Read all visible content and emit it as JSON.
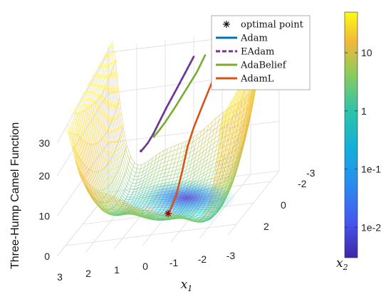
{
  "chart_data": {
    "type": "surface3d",
    "title": "",
    "zlabel": "Three-Hump Camel Function",
    "x1label": "x",
    "x1label_sub": "1",
    "x2label": "x",
    "x2label_sub": "2",
    "x1_ticks": [
      "3",
      "2",
      "1",
      "0",
      "-1",
      "-2",
      "-3"
    ],
    "x2_ticks": [
      "-2",
      "0",
      "2",
      "-3"
    ],
    "z_ticks": [
      "30",
      "20",
      "10",
      "0"
    ],
    "x1_range": [
      -3,
      3
    ],
    "x2_range": [
      -3,
      3
    ],
    "z_range": [
      0,
      30
    ],
    "grid": true,
    "colorbar": {
      "scale": "log",
      "ticks": [
        "10",
        "1",
        "1e-1",
        "1e-2"
      ],
      "tick_values": [
        10,
        1,
        0.1,
        0.01
      ],
      "range": [
        0.003,
        50
      ]
    },
    "legend": {
      "placement": "top-right",
      "entries": [
        {
          "label": "optimal point",
          "marker": "asterisk",
          "color": "#000000"
        },
        {
          "label": "Adam",
          "style": "solid",
          "color": "#0072BD"
        },
        {
          "label": "EAdam",
          "style": "dashed",
          "color": "#7E2F8E"
        },
        {
          "label": "AdaBelief",
          "style": "solid",
          "color": "#77AC30"
        },
        {
          "label": "AdamL",
          "style": "solid",
          "color": "#D95319"
        }
      ]
    },
    "optimal_point": {
      "x1": 0,
      "x2": 0,
      "z": 0
    },
    "series": [
      {
        "name": "Adam",
        "color": "#0072BD",
        "x1": [
          0.0,
          0.2,
          0.4,
          0.6,
          0.75,
          0.85,
          0.95,
          1.05,
          1.1
        ],
        "x2": [
          -3.0,
          -2.6,
          -2.2,
          -1.8,
          -1.4,
          -1.1,
          -0.8,
          -0.6,
          -0.5
        ],
        "z": [
          25.2,
          23.0,
          20.8,
          18.6,
          16.6,
          15.2,
          14.2,
          13.6,
          13.4
        ]
      },
      {
        "name": "EAdam",
        "color": "#7E2F8E",
        "x1": [
          0.0,
          0.2,
          0.4,
          0.6,
          0.75,
          0.85,
          0.95,
          1.05,
          1.1
        ],
        "x2": [
          -3.0,
          -2.6,
          -2.2,
          -1.8,
          -1.4,
          -1.1,
          -0.8,
          -0.6,
          -0.5
        ],
        "z": [
          25.2,
          23.0,
          20.8,
          18.6,
          16.6,
          15.2,
          14.2,
          13.6,
          13.4
        ]
      },
      {
        "name": "AdaBelief",
        "color": "#77AC30",
        "x1": [
          -0.4,
          -0.2,
          0.1,
          0.35,
          0.55,
          0.7,
          0.8
        ],
        "x2": [
          -3.0,
          -2.7,
          -2.3,
          -1.9,
          -1.5,
          -1.2,
          -1.0
        ],
        "z": [
          25.2,
          22.8,
          20.2,
          18.0,
          16.4,
          15.4,
          14.9
        ]
      },
      {
        "name": "AdamL",
        "color": "#D95319",
        "x1": [
          -0.9,
          -0.8,
          -0.6,
          -0.45,
          -0.35,
          -0.25,
          -0.15,
          -0.05,
          0.0
        ],
        "x2": [
          -3.0,
          -2.5,
          -2.0,
          -1.5,
          -1.1,
          -0.8,
          -0.5,
          -0.2,
          0.0
        ],
        "z": [
          25.2,
          21.0,
          17.5,
          14.5,
          11.5,
          7.0,
          3.0,
          0.8,
          0.0
        ]
      }
    ]
  }
}
